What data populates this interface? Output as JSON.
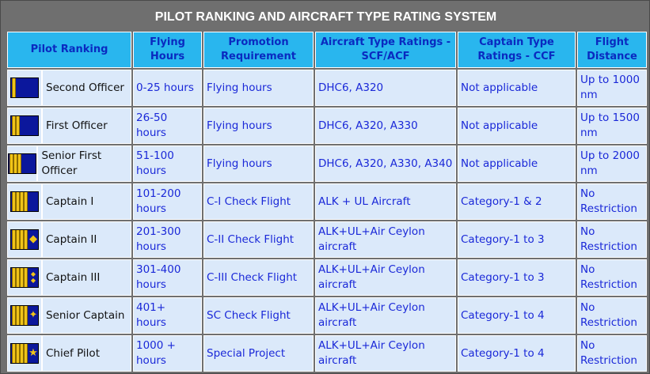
{
  "title": "PILOT RANKING AND AIRCRAFT TYPE RATING SYSTEM",
  "headers": {
    "pilot_ranking": "Pilot Ranking",
    "flying_hours": "Flying Hours",
    "promotion": "Promotion Requirement",
    "aircraft_type": "Aircraft Type Ratings - SCF/ACF",
    "captain_type": "Captain Type Ratings - CCF",
    "flight_distance": "Flight Distance"
  },
  "rows": [
    {
      "rank": "Second Officer",
      "hours": "0-25 hours",
      "promotion": "Flying hours",
      "aircraft": "DHC6, A320",
      "captain": "Not applicable",
      "distance": "Up to 1000 nm",
      "insignia": {
        "stripes": 1,
        "emblem": "none"
      }
    },
    {
      "rank": "First Officer",
      "hours": "26-50 hours",
      "promotion": "Flying hours",
      "aircraft": "DHC6, A320, A330",
      "captain": "Not applicable",
      "distance": "Up to 1500 nm",
      "insignia": {
        "stripes": 2,
        "emblem": "none"
      }
    },
    {
      "rank": "Senior First Officer",
      "hours": "51-100 hours",
      "promotion": "Flying hours",
      "aircraft": "DHC6, A320, A330, A340",
      "captain": "Not applicable",
      "distance": "Up to 2000 nm",
      "insignia": {
        "stripes": 3,
        "emblem": "none"
      }
    },
    {
      "rank": "Captain I",
      "hours": "101-200 hours",
      "promotion": "C-I Check Flight",
      "aircraft": "ALK + UL Aircraft",
      "captain": "Category-1 & 2",
      "distance": "No Restriction",
      "insignia": {
        "stripes": 4,
        "emblem": "none"
      }
    },
    {
      "rank": "Captain II",
      "hours": "201-300 hours",
      "promotion": "C-II Check Flight",
      "aircraft": "ALK+UL+Air Ceylon aircraft",
      "captain": "Category-1 to 3",
      "distance": "No Restriction",
      "insignia": {
        "stripes": 4,
        "emblem": "one-diamond"
      }
    },
    {
      "rank": "Captain III",
      "hours": "301-400 hours",
      "promotion": "C-III Check Flight",
      "aircraft": "ALK+UL+Air Ceylon aircraft",
      "captain": "Category-1 to 3",
      "distance": "No Restriction",
      "insignia": {
        "stripes": 4,
        "emblem": "two-diamonds"
      }
    },
    {
      "rank": "Senior Captain",
      "hours": "401+ hours",
      "promotion": "SC Check Flight",
      "aircraft": "ALK+UL+Air Ceylon aircraft",
      "captain": "Category-1 to 4",
      "distance": "No Restriction",
      "insignia": {
        "stripes": 4,
        "emblem": "compass-star"
      }
    },
    {
      "rank": "Chief Pilot",
      "hours": "1000 + hours",
      "promotion": "Special Project",
      "aircraft": "ALK+UL+Air Ceylon aircraft",
      "captain": "Category-1 to 4",
      "distance": "No Restriction",
      "insignia": {
        "stripes": 4,
        "emblem": "star"
      }
    }
  ],
  "colors": {
    "frame": "#6f6f6f",
    "header_bg": "#29b6ee",
    "header_text": "#0a2ac0",
    "cell_bg": "#dbe9fa",
    "cell_text": "#1a28d8",
    "insignia_bg": "#0b179c",
    "insignia_gold": "#f0c419"
  }
}
